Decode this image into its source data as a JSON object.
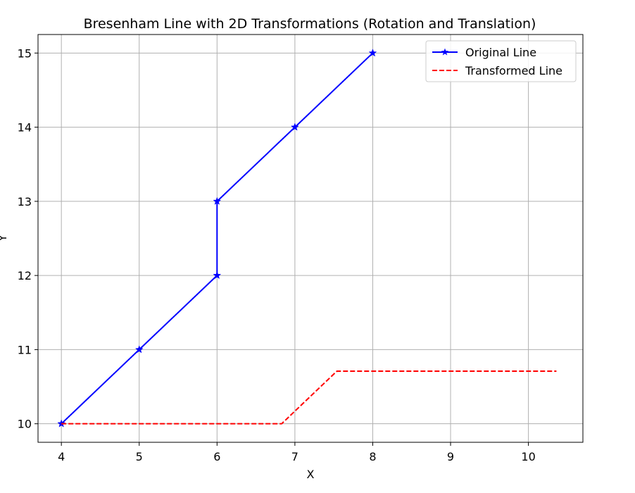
{
  "chart_data": {
    "type": "line",
    "title": "Bresenham Line with 2D Transformations (Rotation and Translation)",
    "xlabel": "X",
    "ylabel": "Y",
    "xlim": [
      3.7,
      10.7
    ],
    "ylim": [
      9.75,
      15.25
    ],
    "xticks": [
      4,
      5,
      6,
      7,
      8,
      9,
      10
    ],
    "yticks": [
      10,
      11,
      12,
      13,
      14,
      15
    ],
    "xtick_labels": [
      "4",
      "5",
      "6",
      "7",
      "8",
      "9",
      "10"
    ],
    "ytick_labels": [
      "10",
      "11",
      "12",
      "13",
      "14",
      "15"
    ],
    "grid": true,
    "legend_position": "top-right",
    "series": [
      {
        "name": "Original Line",
        "style": "solid",
        "marker": "star",
        "color": "#0000ff",
        "x": [
          4,
          5,
          6,
          6,
          7,
          8
        ],
        "y": [
          10,
          11,
          12,
          13,
          14,
          15
        ]
      },
      {
        "name": "Transformed Line",
        "style": "dashed",
        "marker": "none",
        "color": "#ff0000",
        "x": [
          4,
          4.71,
          5.41,
          6.12,
          6.83,
          7.54,
          8.24,
          8.95,
          9.66,
          10.36
        ],
        "y": [
          10,
          10,
          10,
          10,
          10,
          10.71,
          10.71,
          10.71,
          10.71,
          10.71
        ]
      }
    ]
  }
}
